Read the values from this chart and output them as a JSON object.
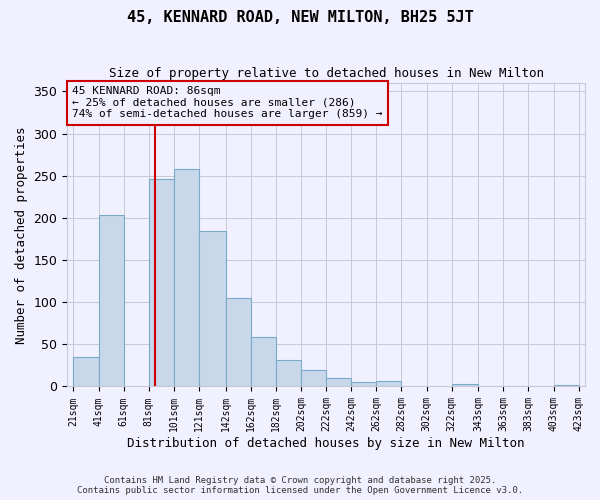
{
  "title": "45, KENNARD ROAD, NEW MILTON, BH25 5JT",
  "subtitle": "Size of property relative to detached houses in New Milton",
  "xlabel": "Distribution of detached houses by size in New Milton",
  "ylabel": "Number of detached properties",
  "bar_left_edges": [
    21,
    41,
    61,
    81,
    101,
    121,
    142,
    162,
    182,
    202,
    222,
    242,
    262,
    282,
    302,
    322,
    343,
    363,
    383,
    403
  ],
  "bar_widths": [
    20,
    20,
    20,
    20,
    20,
    21,
    20,
    20,
    20,
    20,
    20,
    20,
    20,
    20,
    20,
    21,
    20,
    20,
    20,
    20
  ],
  "bar_heights": [
    35,
    203,
    0,
    246,
    258,
    185,
    105,
    59,
    32,
    19,
    10,
    5,
    6,
    0,
    0,
    3,
    0,
    1,
    0,
    2
  ],
  "x_tick_labels": [
    "21sqm",
    "41sqm",
    "61sqm",
    "81sqm",
    "101sqm",
    "121sqm",
    "142sqm",
    "162sqm",
    "182sqm",
    "202sqm",
    "222sqm",
    "242sqm",
    "262sqm",
    "282sqm",
    "302sqm",
    "322sqm",
    "343sqm",
    "363sqm",
    "383sqm",
    "403sqm",
    "423sqm"
  ],
  "x_tick_positions": [
    21,
    41,
    61,
    81,
    101,
    121,
    142,
    162,
    182,
    202,
    222,
    242,
    262,
    282,
    302,
    322,
    343,
    363,
    383,
    403,
    423
  ],
  "ylim": [
    0,
    360
  ],
  "yticks": [
    0,
    50,
    100,
    150,
    200,
    250,
    300,
    350
  ],
  "xlim_min": 16,
  "xlim_max": 428,
  "bar_color": "#c8d8ea",
  "bar_edge_color": "#7aaac8",
  "property_line_x": 86,
  "property_line_color": "#cc0000",
  "annotation_title": "45 KENNARD ROAD: 86sqm",
  "annotation_line1": "← 25% of detached houses are smaller (286)",
  "annotation_line2": "74% of semi-detached houses are larger (859) →",
  "annotation_box_color": "#cc0000",
  "background_color": "#f0f0ff",
  "grid_color": "#c8c8d8",
  "footer1": "Contains HM Land Registry data © Crown copyright and database right 2025.",
  "footer2": "Contains public sector information licensed under the Open Government Licence v3.0."
}
